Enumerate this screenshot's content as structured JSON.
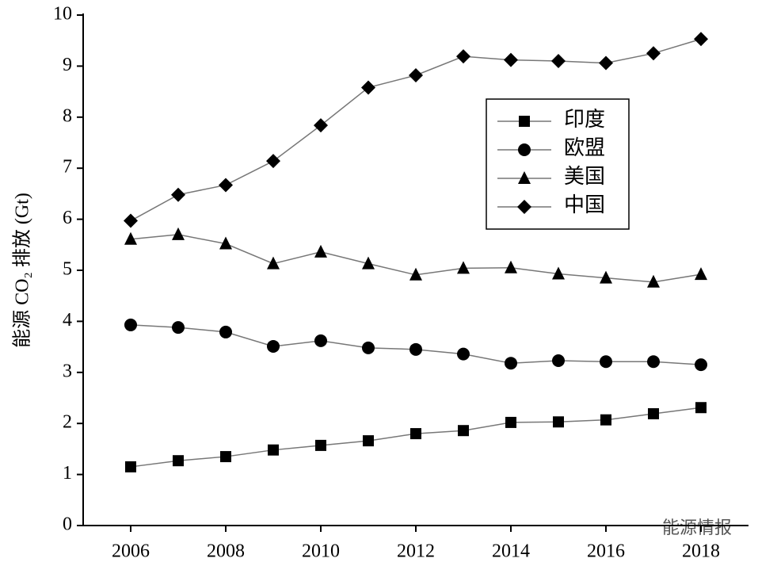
{
  "chart_data": {
    "type": "line",
    "y_label": "能源 CO₂ 排放 (Gt)",
    "watermark": "能源情报",
    "x": [
      2006,
      2007,
      2008,
      2009,
      2010,
      2011,
      2012,
      2013,
      2014,
      2015,
      2016,
      2017,
      2018
    ],
    "series": [
      {
        "name": "印度",
        "marker": "square",
        "color": "#000000",
        "values": [
          1.15,
          1.27,
          1.35,
          1.48,
          1.57,
          1.66,
          1.8,
          1.86,
          2.02,
          2.03,
          2.07,
          2.19,
          2.31
        ]
      },
      {
        "name": "欧盟",
        "marker": "circle",
        "color": "#000000",
        "values": [
          3.93,
          3.88,
          3.79,
          3.51,
          3.62,
          3.48,
          3.45,
          3.36,
          3.18,
          3.23,
          3.21,
          3.21,
          3.15
        ]
      },
      {
        "name": "美国",
        "marker": "triangle",
        "color": "#000000",
        "values": [
          5.61,
          5.7,
          5.52,
          5.13,
          5.36,
          5.13,
          4.91,
          5.04,
          5.05,
          4.93,
          4.85,
          4.77,
          4.92
        ]
      },
      {
        "name": "中国",
        "marker": "diamond",
        "color": "#000000",
        "values": [
          5.97,
          6.48,
          6.67,
          7.14,
          7.84,
          8.58,
          8.82,
          9.19,
          9.12,
          9.1,
          9.06,
          9.25,
          9.53
        ]
      }
    ],
    "xlim": [
      2005,
      2019
    ],
    "xticks": [
      2006,
      2008,
      2010,
      2012,
      2014,
      2016,
      2018
    ],
    "ylim": [
      0,
      10
    ],
    "yticks": [
      0,
      1,
      2,
      3,
      4,
      5,
      6,
      7,
      8,
      9,
      10
    ],
    "grid": false,
    "legend": "upper right"
  }
}
